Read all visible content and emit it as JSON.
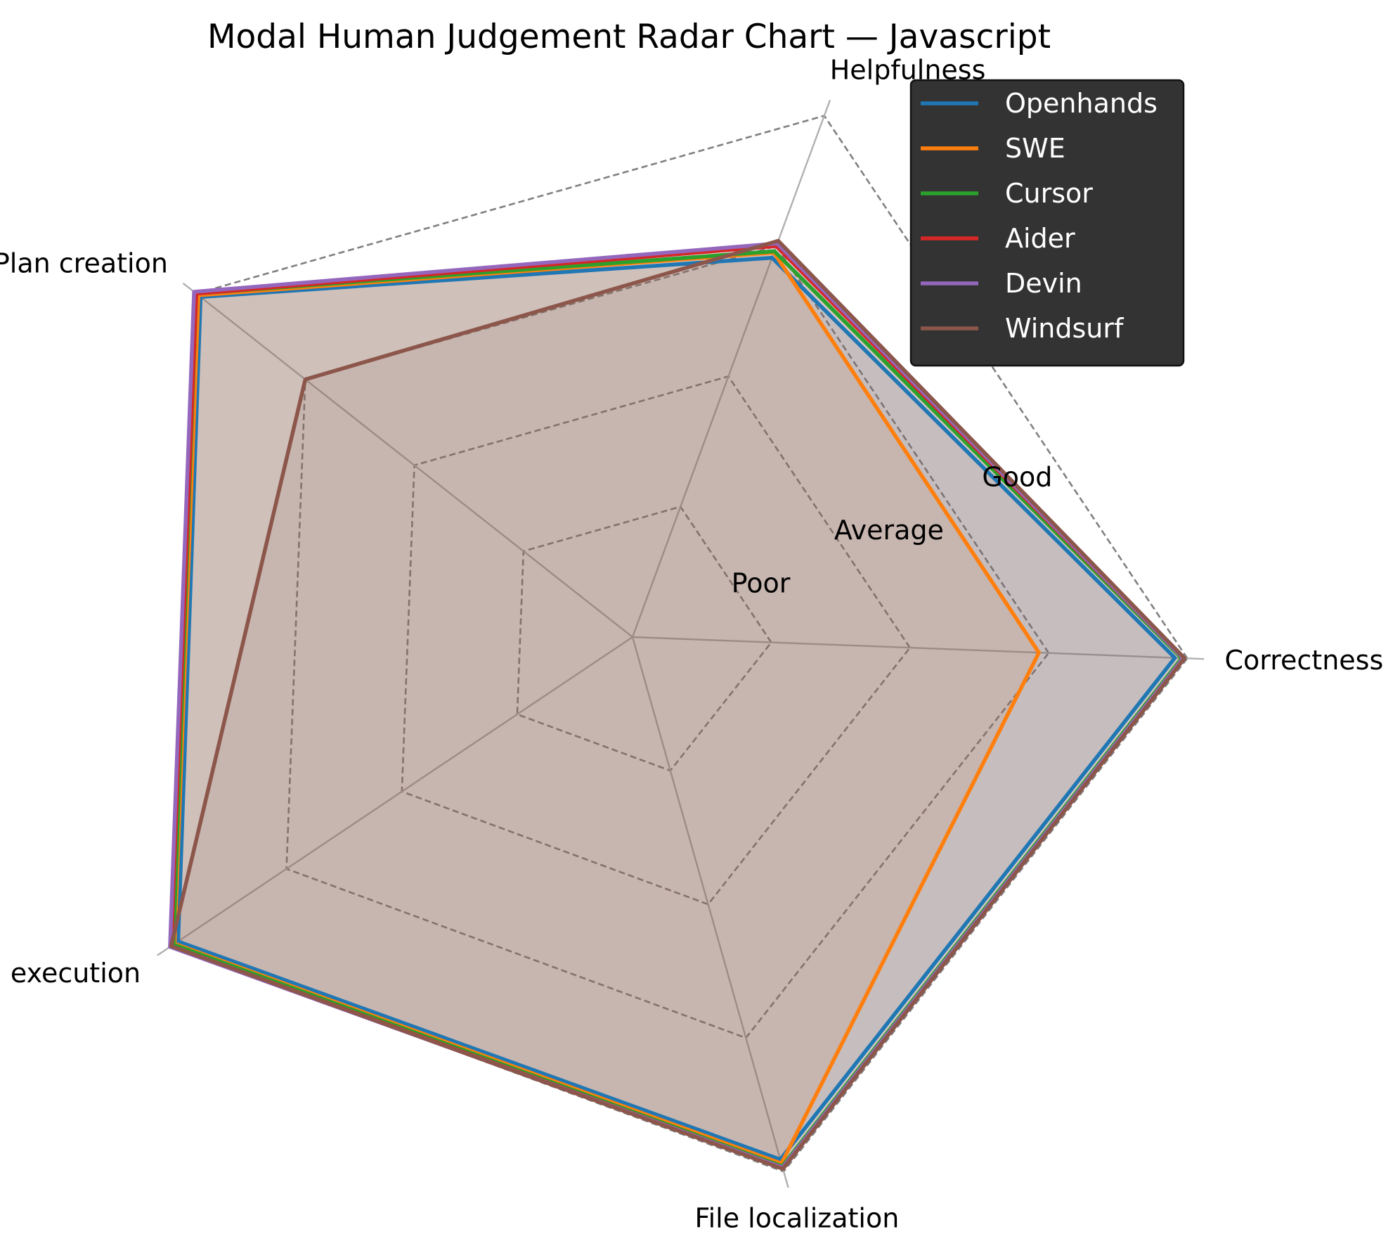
{
  "chart_data": {
    "type": "radar",
    "title": "Modal Human Judgement Radar Chart — Javascript",
    "axes": [
      "Correctness",
      "Helpfulness",
      "Plan creation",
      "Plan execution",
      "File localization"
    ],
    "levels": [
      "Poor",
      "Average",
      "Good"
    ],
    "r_range": [
      0,
      4
    ],
    "grid": true,
    "legend_position": "top-right",
    "background_color": "#ffffff",
    "legend_background": "#333333",
    "gridline_color": "#808080",
    "spoke_color": "#b0b0b0",
    "series": [
      {
        "name": "Openhands",
        "color": "#1f77b4",
        "values": [
          3.91,
          2.91,
          3.96,
          3.94,
          3.91
        ]
      },
      {
        "name": "SWE",
        "color": "#ff7f0e",
        "values": [
          2.93,
          2.95,
          3.98,
          3.97,
          3.94
        ]
      },
      {
        "name": "Cursor",
        "color": "#2ca02c",
        "values": [
          3.96,
          2.96,
          4.0,
          3.98,
          3.96
        ]
      },
      {
        "name": "Aider",
        "color": "#d62728",
        "values": [
          3.97,
          3.0,
          4.0,
          4.0,
          3.97
        ]
      },
      {
        "name": "Devin",
        "color": "#9467bd",
        "values": [
          3.97,
          3.02,
          4.02,
          4.01,
          3.97
        ]
      },
      {
        "name": "Windsurf",
        "color": "#8c564b",
        "values": [
          3.98,
          3.04,
          3.0,
          4.0,
          3.98
        ]
      }
    ]
  }
}
